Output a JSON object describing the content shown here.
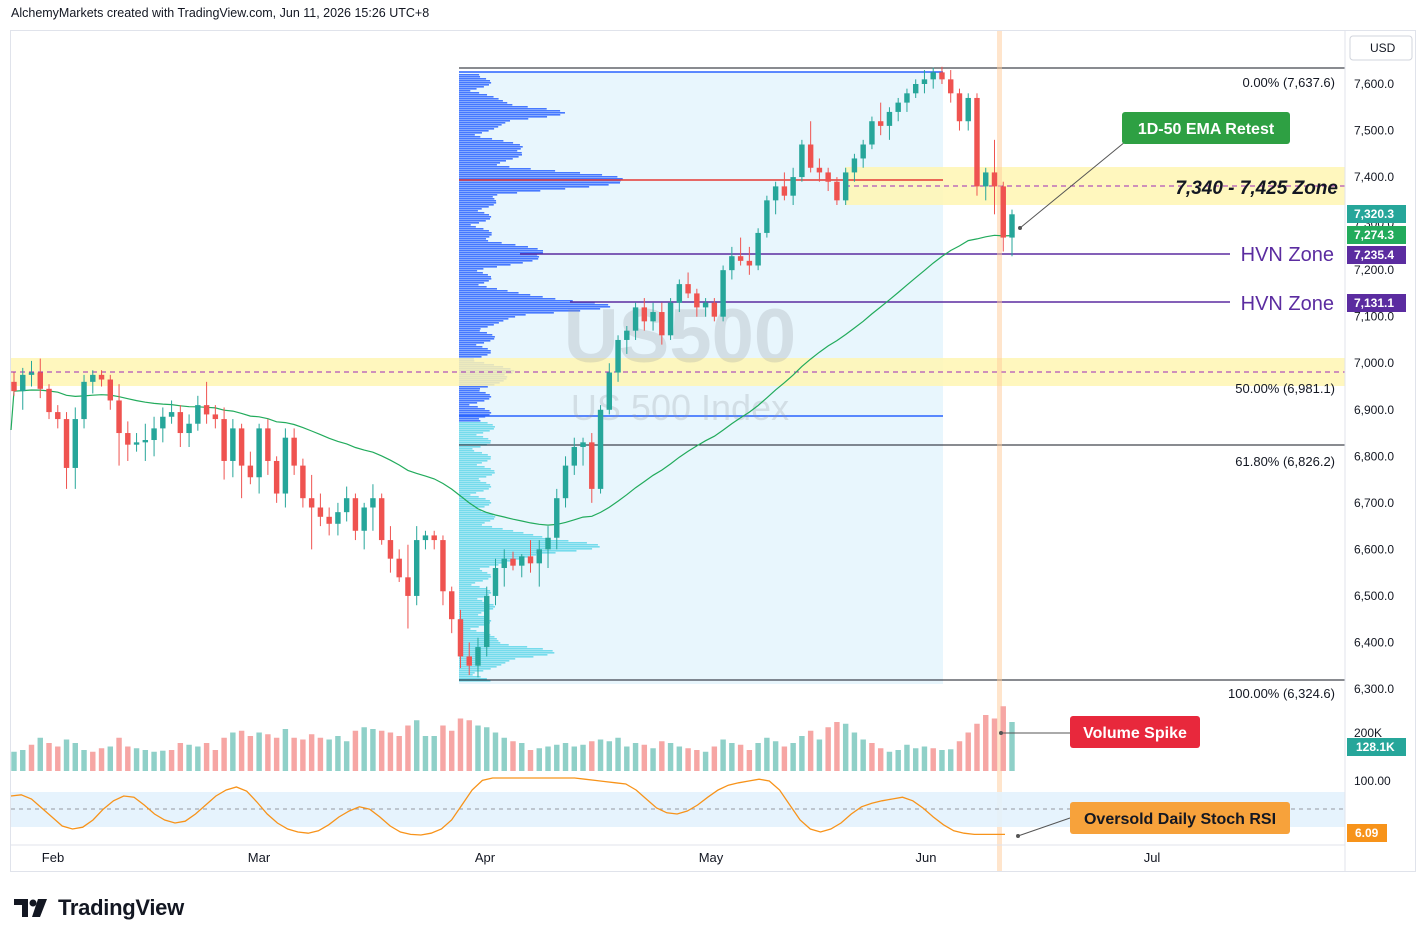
{
  "header": {
    "attribution": "AlchemyMarkets created with TradingView.com, Jun 11, 2026 15:26 UTC+8"
  },
  "footer": {
    "brand": "TradingView"
  },
  "watermark": {
    "symbol": "US500",
    "name": "US 500 Index"
  },
  "price_axis": {
    "currency": "USD",
    "ticks": [
      "7,600.0",
      "7,500.0",
      "7,400.0",
      "7,300.0",
      "7,200.0",
      "7,100.0",
      "7,000.0",
      "6,900.0",
      "6,800.0",
      "6,700.0",
      "6,600.0",
      "6,500.0",
      "6,400.0",
      "6,300.0"
    ],
    "badges": {
      "last": "7,320.3",
      "ema": "7,274.3",
      "hvn1": "7,235.4",
      "hvn2": "7,131.1"
    }
  },
  "indicator_axis": {
    "volume_tick": "200K",
    "volume_badge": "128.1K",
    "stoch_tick": "100.00",
    "stoch_badge": "6.09"
  },
  "time_axis": {
    "labels": [
      "Feb",
      "Mar",
      "Apr",
      "May",
      "Jun",
      "Jul"
    ]
  },
  "fib_labels": {
    "level_0": "0.00% (7,637.6)",
    "level_50": "50.00% (6,981.1)",
    "level_618": "61.80% (6,826.2)",
    "level_100": "100.00% (6,324.6)"
  },
  "annotations": {
    "zone": "7,340 - 7,425 Zone",
    "hvn_1": "HVN Zone",
    "hvn_2": "HVN Zone",
    "ema_retest": "1D-50 EMA Retest",
    "volume_spike": "Volume Spike",
    "stoch_oversold": "Oversold Daily Stoch RSI"
  },
  "colors": {
    "up": "#26a69a",
    "down": "#ef5350",
    "ema": "#22ab5c",
    "zone": "#fff3a8",
    "hvn": "#5b2ca0",
    "profile": "#2962ff",
    "profile_light": "#4fd1e5",
    "stoch": "#f7931a",
    "callout_green": "#2ea043",
    "callout_red": "#e8283c",
    "callout_orange": "#f7a23b"
  },
  "chart_data": {
    "type": "candlestick",
    "symbol": "US500",
    "ylim": [
      6280,
      7680
    ],
    "fib_levels": [
      {
        "pct": "0.00%",
        "price": 7637.6
      },
      {
        "pct": "50.00%",
        "price": 6981.1
      },
      {
        "pct": "61.80%",
        "price": 6826.2
      },
      {
        "pct": "100.00%",
        "price": 6324.6
      }
    ],
    "zone": [
      7340,
      7425
    ],
    "hvn_levels": [
      7235.4,
      7131.1
    ],
    "last_price": 7320.3,
    "ema_50": 7274.3,
    "candles": [
      [
        6960,
        6980,
        6930,
        6940
      ],
      [
        6940,
        6990,
        6900,
        6975
      ],
      [
        6975,
        7005,
        6950,
        6980
      ],
      [
        6980,
        7010,
        6925,
        6945
      ],
      [
        6945,
        6955,
        6880,
        6895
      ],
      [
        6895,
        6910,
        6860,
        6880
      ],
      [
        6880,
        6895,
        6730,
        6775
      ],
      [
        6775,
        6905,
        6730,
        6880
      ],
      [
        6880,
        6975,
        6860,
        6960
      ],
      [
        6960,
        6985,
        6935,
        6975
      ],
      [
        6975,
        6985,
        6950,
        6965
      ],
      [
        6965,
        6975,
        6900,
        6920
      ],
      [
        6920,
        6955,
        6780,
        6850
      ],
      [
        6850,
        6875,
        6790,
        6825
      ],
      [
        6825,
        6850,
        6810,
        6830
      ],
      [
        6830,
        6870,
        6790,
        6835
      ],
      [
        6835,
        6885,
        6800,
        6860
      ],
      [
        6860,
        6905,
        6830,
        6885
      ],
      [
        6885,
        6920,
        6870,
        6895
      ],
      [
        6895,
        6910,
        6820,
        6850
      ],
      [
        6850,
        6890,
        6820,
        6870
      ],
      [
        6870,
        6930,
        6855,
        6910
      ],
      [
        6910,
        6960,
        6870,
        6890
      ],
      [
        6890,
        6910,
        6860,
        6880
      ],
      [
        6880,
        6905,
        6750,
        6790
      ],
      [
        6790,
        6880,
        6755,
        6860
      ],
      [
        6860,
        6870,
        6710,
        6780
      ],
      [
        6780,
        6810,
        6740,
        6755
      ],
      [
        6755,
        6870,
        6720,
        6860
      ],
      [
        6860,
        6880,
        6760,
        6790
      ],
      [
        6790,
        6800,
        6700,
        6720
      ],
      [
        6720,
        6860,
        6690,
        6840
      ],
      [
        6840,
        6860,
        6760,
        6780
      ],
      [
        6780,
        6795,
        6690,
        6710
      ],
      [
        6710,
        6760,
        6600,
        6690
      ],
      [
        6690,
        6720,
        6650,
        6670
      ],
      [
        6670,
        6690,
        6630,
        6655
      ],
      [
        6655,
        6700,
        6630,
        6680
      ],
      [
        6680,
        6735,
        6660,
        6710
      ],
      [
        6710,
        6720,
        6620,
        6640
      ],
      [
        6640,
        6700,
        6600,
        6690
      ],
      [
        6690,
        6740,
        6640,
        6710
      ],
      [
        6710,
        6720,
        6610,
        6620
      ],
      [
        6620,
        6650,
        6550,
        6580
      ],
      [
        6580,
        6600,
        6530,
        6540
      ],
      [
        6540,
        6610,
        6430,
        6500
      ],
      [
        6500,
        6650,
        6480,
        6620
      ],
      [
        6620,
        6640,
        6600,
        6630
      ],
      [
        6630,
        6640,
        6600,
        6620
      ],
      [
        6620,
        6630,
        6480,
        6510
      ],
      [
        6510,
        6520,
        6420,
        6450
      ],
      [
        6450,
        6470,
        6345,
        6370
      ],
      [
        6370,
        6400,
        6330,
        6350
      ],
      [
        6350,
        6410,
        6325,
        6390
      ],
      [
        6390,
        6520,
        6370,
        6500
      ],
      [
        6500,
        6580,
        6480,
        6560
      ],
      [
        6560,
        6600,
        6520,
        6580
      ],
      [
        6580,
        6595,
        6555,
        6565
      ],
      [
        6565,
        6590,
        6540,
        6585
      ],
      [
        6585,
        6620,
        6550,
        6570
      ],
      [
        6570,
        6620,
        6520,
        6600
      ],
      [
        6600,
        6650,
        6560,
        6625
      ],
      [
        6625,
        6730,
        6600,
        6710
      ],
      [
        6710,
        6800,
        6690,
        6780
      ],
      [
        6780,
        6840,
        6760,
        6820
      ],
      [
        6820,
        6840,
        6780,
        6830
      ],
      [
        6830,
        6850,
        6700,
        6730
      ],
      [
        6730,
        6910,
        6720,
        6900
      ],
      [
        6900,
        7000,
        6890,
        6980
      ],
      [
        6980,
        7060,
        6960,
        7050
      ],
      [
        7050,
        7080,
        7020,
        7070
      ],
      [
        7070,
        7130,
        7050,
        7120
      ],
      [
        7120,
        7140,
        7070,
        7090
      ],
      [
        7090,
        7130,
        7070,
        7110
      ],
      [
        7110,
        7130,
        7040,
        7060
      ],
      [
        7060,
        7140,
        7050,
        7130
      ],
      [
        7130,
        7180,
        7110,
        7170
      ],
      [
        7170,
        7195,
        7140,
        7150
      ],
      [
        7150,
        7160,
        7100,
        7120
      ],
      [
        7120,
        7140,
        7100,
        7130
      ],
      [
        7130,
        7140,
        7090,
        7100
      ],
      [
        7100,
        7210,
        7090,
        7200
      ],
      [
        7200,
        7250,
        7180,
        7230
      ],
      [
        7230,
        7270,
        7210,
        7220
      ],
      [
        7220,
        7250,
        7190,
        7210
      ],
      [
        7210,
        7290,
        7200,
        7280
      ],
      [
        7280,
        7360,
        7270,
        7350
      ],
      [
        7350,
        7390,
        7320,
        7380
      ],
      [
        7380,
        7410,
        7350,
        7360
      ],
      [
        7360,
        7420,
        7340,
        7400
      ],
      [
        7400,
        7480,
        7390,
        7470
      ],
      [
        7470,
        7520,
        7410,
        7420
      ],
      [
        7420,
        7440,
        7390,
        7410
      ],
      [
        7410,
        7420,
        7370,
        7390
      ],
      [
        7390,
        7400,
        7340,
        7350
      ],
      [
        7350,
        7420,
        7340,
        7410
      ],
      [
        7410,
        7450,
        7390,
        7440
      ],
      [
        7440,
        7480,
        7420,
        7470
      ],
      [
        7470,
        7530,
        7460,
        7520
      ],
      [
        7520,
        7560,
        7490,
        7510
      ],
      [
        7510,
        7550,
        7480,
        7540
      ],
      [
        7540,
        7570,
        7520,
        7560
      ],
      [
        7560,
        7590,
        7540,
        7580
      ],
      [
        7580,
        7610,
        7570,
        7600
      ],
      [
        7600,
        7630,
        7580,
        7610
      ],
      [
        7610,
        7635,
        7590,
        7625
      ],
      [
        7625,
        7637,
        7600,
        7610
      ],
      [
        7610,
        7630,
        7560,
        7580
      ],
      [
        7580,
        7590,
        7500,
        7520
      ],
      [
        7520,
        7580,
        7500,
        7570
      ],
      [
        7570,
        7580,
        7360,
        7380
      ],
      [
        7380,
        7420,
        7350,
        7410
      ],
      [
        7410,
        7480,
        7320,
        7380
      ],
      [
        7380,
        7390,
        7240,
        7270
      ],
      [
        7270,
        7330,
        7230,
        7320
      ]
    ],
    "volume": [
      [
        55,
        "u"
      ],
      [
        60,
        "u"
      ],
      [
        75,
        "d"
      ],
      [
        95,
        "u"
      ],
      [
        80,
        "d"
      ],
      [
        70,
        "d"
      ],
      [
        90,
        "u"
      ],
      [
        80,
        "u"
      ],
      [
        60,
        "u"
      ],
      [
        55,
        "d"
      ],
      [
        65,
        "d"
      ],
      [
        70,
        "u"
      ],
      [
        95,
        "d"
      ],
      [
        70,
        "d"
      ],
      [
        65,
        "u"
      ],
      [
        60,
        "u"
      ],
      [
        55,
        "u"
      ],
      [
        58,
        "u"
      ],
      [
        60,
        "d"
      ],
      [
        80,
        "d"
      ],
      [
        75,
        "u"
      ],
      [
        70,
        "u"
      ],
      [
        80,
        "d"
      ],
      [
        60,
        "d"
      ],
      [
        95,
        "d"
      ],
      [
        110,
        "u"
      ],
      [
        115,
        "d"
      ],
      [
        100,
        "d"
      ],
      [
        110,
        "u"
      ],
      [
        105,
        "d"
      ],
      [
        95,
        "d"
      ],
      [
        120,
        "u"
      ],
      [
        95,
        "d"
      ],
      [
        90,
        "d"
      ],
      [
        105,
        "d"
      ],
      [
        95,
        "d"
      ],
      [
        90,
        "u"
      ],
      [
        100,
        "u"
      ],
      [
        85,
        "u"
      ],
      [
        115,
        "d"
      ],
      [
        125,
        "u"
      ],
      [
        120,
        "u"
      ],
      [
        115,
        "d"
      ],
      [
        110,
        "d"
      ],
      [
        100,
        "d"
      ],
      [
        130,
        "d"
      ],
      [
        145,
        "u"
      ],
      [
        100,
        "u"
      ],
      [
        100,
        "u"
      ],
      [
        130,
        "d"
      ],
      [
        115,
        "d"
      ],
      [
        150,
        "d"
      ],
      [
        145,
        "d"
      ],
      [
        130,
        "u"
      ],
      [
        125,
        "u"
      ],
      [
        110,
        "u"
      ],
      [
        95,
        "u"
      ],
      [
        85,
        "d"
      ],
      [
        80,
        "u"
      ],
      [
        60,
        "d"
      ],
      [
        65,
        "u"
      ],
      [
        70,
        "u"
      ],
      [
        75,
        "u"
      ],
      [
        80,
        "u"
      ],
      [
        70,
        "u"
      ],
      [
        75,
        "u"
      ],
      [
        85,
        "d"
      ],
      [
        90,
        "u"
      ],
      [
        85,
        "u"
      ],
      [
        95,
        "u"
      ],
      [
        70,
        "u"
      ],
      [
        80,
        "u"
      ],
      [
        75,
        "d"
      ],
      [
        65,
        "u"
      ],
      [
        85,
        "d"
      ],
      [
        80,
        "u"
      ],
      [
        70,
        "u"
      ],
      [
        65,
        "d"
      ],
      [
        60,
        "d"
      ],
      [
        55,
        "u"
      ],
      [
        70,
        "d"
      ],
      [
        90,
        "u"
      ],
      [
        80,
        "u"
      ],
      [
        75,
        "d"
      ],
      [
        60,
        "d"
      ],
      [
        80,
        "u"
      ],
      [
        95,
        "u"
      ],
      [
        85,
        "u"
      ],
      [
        70,
        "d"
      ],
      [
        80,
        "u"
      ],
      [
        100,
        "u"
      ],
      [
        115,
        "d"
      ],
      [
        90,
        "u"
      ],
      [
        125,
        "d"
      ],
      [
        140,
        "d"
      ],
      [
        135,
        "u"
      ],
      [
        110,
        "u"
      ],
      [
        90,
        "u"
      ],
      [
        80,
        "d"
      ],
      [
        65,
        "d"
      ],
      [
        55,
        "u"
      ],
      [
        60,
        "u"
      ],
      [
        75,
        "u"
      ],
      [
        65,
        "u"
      ],
      [
        70,
        "u"
      ],
      [
        65,
        "d"
      ],
      [
        60,
        "u"
      ],
      [
        62,
        "u"
      ],
      [
        85,
        "d"
      ],
      [
        110,
        "d"
      ],
      [
        135,
        "d"
      ],
      [
        160,
        "d"
      ],
      [
        150,
        "d"
      ],
      [
        185,
        "d"
      ],
      [
        140,
        "u"
      ]
    ]
  }
}
